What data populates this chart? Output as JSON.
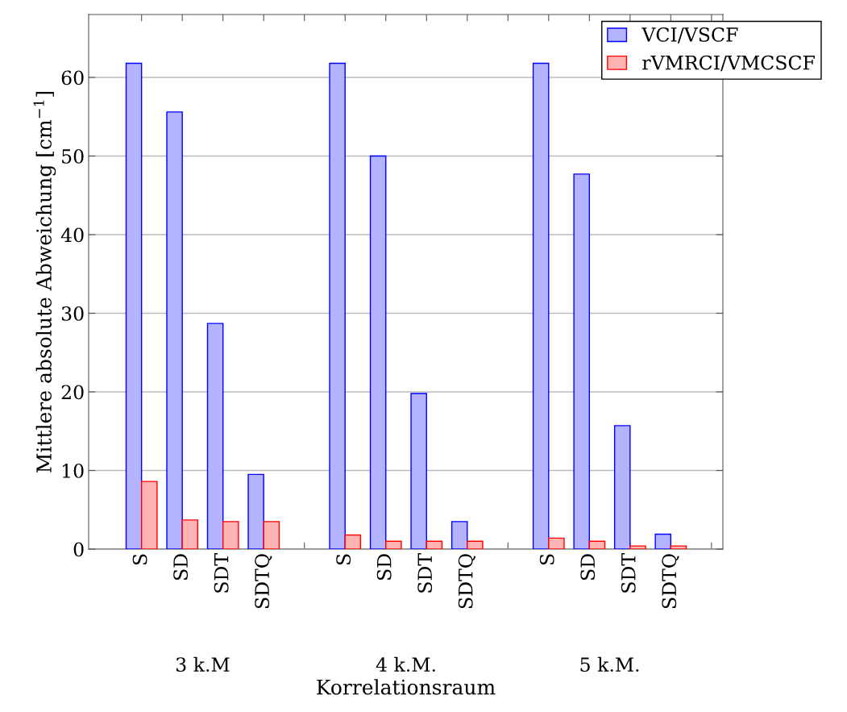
{
  "chart_data": {
    "type": "bar",
    "xlabel": "Korrelationsraum",
    "ylabel": "Mittlere absolute Abweichung [cm$^{−1}$]",
    "categories": [
      "S",
      "SD",
      "SDT",
      "SDTQ",
      null,
      "S",
      "SD",
      "SDT",
      "SDTQ",
      null,
      "S",
      "SD",
      "SDT",
      "SDTQ",
      null
    ],
    "series": [
      {
        "name": "VCI/VSCF",
        "color": "#b3b3ff",
        "values": [
          61.8,
          55.6,
          28.7,
          9.5,
          null,
          61.8,
          50.0,
          19.8,
          3.5,
          null,
          61.8,
          47.7,
          15.7,
          1.9,
          null
        ]
      },
      {
        "name": "rVMRCI/VMCSCF",
        "color": "#ffb3b3",
        "values": [
          8.6,
          3.7,
          3.5,
          3.5,
          null,
          1.8,
          1.0,
          1.0,
          1.0,
          null,
          1.4,
          1.0,
          0.4,
          0.4,
          null
        ]
      }
    ],
    "annotations": [
      "3 k.M",
      "4 k.M.",
      "5 k.M."
    ],
    "ylim": [
      0,
      68
    ],
    "yticks": [
      0,
      10,
      20,
      30,
      40,
      50,
      60
    ],
    "grid": "y",
    "legend": "top right"
  }
}
